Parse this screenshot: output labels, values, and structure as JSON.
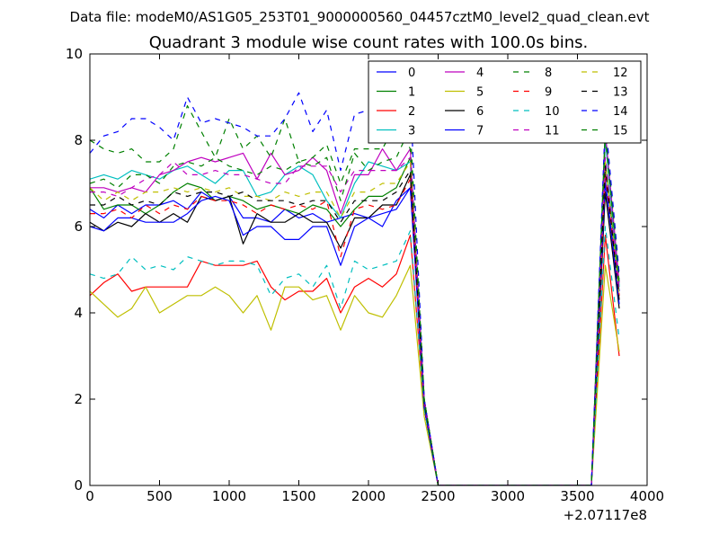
{
  "header": {
    "data_file": "Data file: modeM0/AS1G05_253T01_9000000560_04457cztM0_level2_quad_clean.evt"
  },
  "chart_data": {
    "type": "line",
    "title": "Quadrant 3 module wise count rates with 100.0s bins.",
    "xlabel": "",
    "ylabel": "",
    "x_offset_label": "+2.07117e8",
    "xlim": [
      0,
      4000
    ],
    "ylim": [
      0,
      10
    ],
    "x_ticks": [
      0,
      500,
      1000,
      1500,
      2000,
      2500,
      3000,
      3500,
      4000
    ],
    "y_ticks": [
      0,
      2,
      4,
      6,
      8,
      10
    ],
    "grid": false,
    "legend": {
      "position": "top-right",
      "columns": 4
    },
    "x": [
      0,
      100,
      200,
      300,
      400,
      500,
      600,
      700,
      800,
      900,
      1000,
      1100,
      1200,
      1300,
      1400,
      1500,
      1600,
      1700,
      1800,
      1900,
      2000,
      2100,
      2200,
      2300,
      2400,
      2500,
      2600,
      2700,
      2800,
      2900,
      3000,
      3100,
      3200,
      3300,
      3400,
      3500,
      3600,
      3700,
      3800
    ],
    "series": [
      {
        "name": "0",
        "color": "#0000ff",
        "dash": "solid",
        "values": [
          6.4,
          6.2,
          6.5,
          6.3,
          6.5,
          6.5,
          6.6,
          6.4,
          6.8,
          6.6,
          6.7,
          6.2,
          6.2,
          6.1,
          6.4,
          6.2,
          6.3,
          6.1,
          6.2,
          6.3,
          6.2,
          6.3,
          6.4,
          6.9,
          2.0,
          0,
          0,
          0,
          0,
          0,
          0,
          0,
          0,
          0,
          0,
          0,
          0,
          7.0,
          4.5
        ]
      },
      {
        "name": "1",
        "color": "#008000",
        "dash": "solid",
        "values": [
          6.9,
          6.4,
          6.5,
          6.5,
          6.3,
          6.5,
          6.8,
          7.0,
          6.9,
          6.6,
          6.7,
          6.6,
          6.4,
          6.5,
          6.4,
          6.3,
          6.5,
          6.4,
          6.0,
          6.4,
          6.7,
          6.7,
          6.9,
          7.6,
          2.0,
          0,
          0,
          0,
          0,
          0,
          0,
          0,
          0,
          0,
          0,
          0,
          0,
          7.5,
          4.6
        ]
      },
      {
        "name": "2",
        "color": "#ff0000",
        "dash": "solid",
        "values": [
          4.4,
          4.7,
          4.9,
          4.5,
          4.6,
          4.6,
          4.6,
          4.6,
          5.2,
          5.1,
          5.1,
          5.1,
          5.2,
          4.6,
          4.3,
          4.5,
          4.5,
          4.8,
          4.0,
          4.6,
          4.8,
          4.6,
          4.9,
          5.8,
          1.8,
          0,
          0,
          0,
          0,
          0,
          0,
          0,
          0,
          0,
          0,
          0,
          0,
          5.8,
          3.0
        ]
      },
      {
        "name": "3",
        "color": "#00bfbf",
        "dash": "solid",
        "values": [
          7.1,
          7.2,
          7.1,
          7.3,
          7.2,
          7.1,
          7.3,
          7.4,
          7.2,
          7.0,
          7.3,
          7.3,
          6.7,
          6.8,
          7.2,
          7.4,
          7.2,
          6.6,
          6.2,
          7.0,
          7.5,
          7.4,
          7.3,
          7.5,
          2.0,
          0,
          0,
          0,
          0,
          0,
          0,
          0,
          0,
          0,
          0,
          0,
          0,
          8.0,
          4.6
        ]
      },
      {
        "name": "4",
        "color": "#bf00bf",
        "dash": "solid",
        "values": [
          6.9,
          6.9,
          6.8,
          6.9,
          6.8,
          7.2,
          7.3,
          7.5,
          7.6,
          7.5,
          7.6,
          7.7,
          7.1,
          7.7,
          7.2,
          7.3,
          7.6,
          7.3,
          6.3,
          7.2,
          7.2,
          7.8,
          7.3,
          7.8,
          2.0,
          0,
          0,
          0,
          0,
          0,
          0,
          0,
          0,
          0,
          0,
          0,
          0,
          8.2,
          4.7
        ]
      },
      {
        "name": "5",
        "color": "#bfbf00",
        "dash": "solid",
        "values": [
          4.5,
          4.2,
          3.9,
          4.1,
          4.6,
          4.0,
          4.2,
          4.4,
          4.4,
          4.6,
          4.4,
          4.0,
          4.4,
          3.6,
          4.6,
          4.6,
          4.3,
          4.4,
          3.6,
          4.4,
          4.0,
          3.9,
          4.4,
          5.1,
          1.6,
          0,
          0,
          0,
          0,
          0,
          0,
          0,
          0,
          0,
          0,
          0,
          0,
          5.1,
          3.1
        ]
      },
      {
        "name": "6",
        "color": "#000000",
        "dash": "solid",
        "values": [
          6.1,
          5.9,
          6.1,
          6.0,
          6.3,
          6.1,
          6.3,
          6.1,
          6.7,
          6.6,
          6.7,
          5.6,
          6.3,
          6.1,
          6.1,
          6.3,
          6.1,
          6.1,
          5.5,
          6.2,
          6.2,
          6.5,
          6.5,
          7.2,
          1.8,
          0,
          0,
          0,
          0,
          0,
          0,
          0,
          0,
          0,
          0,
          0,
          0,
          6.8,
          4.1
        ]
      },
      {
        "name": "7",
        "color": "#0000ff",
        "dash": "solid",
        "values": [
          6.0,
          5.9,
          6.2,
          6.2,
          6.1,
          6.1,
          6.1,
          6.3,
          6.6,
          6.7,
          6.6,
          5.8,
          6.0,
          6.0,
          5.7,
          5.7,
          6.0,
          6.0,
          5.1,
          6.0,
          6.2,
          6.0,
          6.6,
          6.9,
          1.8,
          0,
          0,
          0,
          0,
          0,
          0,
          0,
          0,
          0,
          0,
          0,
          0,
          7.1,
          4.2
        ]
      },
      {
        "name": "8",
        "color": "#008000",
        "dash": "dashed",
        "values": [
          8.0,
          7.8,
          7.7,
          7.8,
          7.5,
          7.5,
          7.8,
          8.8,
          8.2,
          7.6,
          8.5,
          7.8,
          8.1,
          7.6,
          8.5,
          7.5,
          7.6,
          7.9,
          7.0,
          7.8,
          7.8,
          7.8,
          8.4,
          7.8,
          2.0,
          0,
          0,
          0,
          0,
          0,
          0,
          0,
          0,
          0,
          0,
          0,
          0,
          8.3,
          4.8
        ]
      },
      {
        "name": "9",
        "color": "#ff0000",
        "dash": "dashed",
        "values": [
          6.3,
          6.3,
          6.4,
          6.2,
          6.5,
          6.3,
          6.5,
          6.4,
          6.7,
          6.6,
          6.6,
          6.5,
          6.3,
          6.5,
          6.4,
          6.5,
          6.4,
          6.6,
          5.3,
          6.4,
          6.5,
          6.4,
          6.5,
          7.1,
          1.9,
          0,
          0,
          0,
          0,
          0,
          0,
          0,
          0,
          0,
          0,
          0,
          0,
          7.2,
          4.4
        ]
      },
      {
        "name": "10",
        "color": "#00bfbf",
        "dash": "dashed",
        "values": [
          4.9,
          4.8,
          4.9,
          5.3,
          5.0,
          5.1,
          5.0,
          5.3,
          5.2,
          5.1,
          5.2,
          5.2,
          5.1,
          4.4,
          4.8,
          4.9,
          4.6,
          5.1,
          4.1,
          5.2,
          5.0,
          5.1,
          5.2,
          5.9,
          1.8,
          0,
          0,
          0,
          0,
          0,
          0,
          0,
          0,
          0,
          0,
          0,
          0,
          6.0,
          3.4
        ]
      },
      {
        "name": "11",
        "color": "#bf00bf",
        "dash": "dashed",
        "values": [
          6.8,
          6.8,
          6.7,
          6.9,
          7.1,
          7.2,
          7.5,
          7.2,
          7.2,
          7.3,
          7.2,
          7.2,
          7.1,
          7.0,
          7.0,
          7.4,
          7.4,
          7.4,
          6.8,
          7.3,
          7.3,
          7.3,
          7.3,
          7.6,
          2.0,
          0,
          0,
          0,
          0,
          0,
          0,
          0,
          0,
          0,
          0,
          0,
          0,
          7.6,
          4.5
        ]
      },
      {
        "name": "12",
        "color": "#bfbf00",
        "dash": "dashed",
        "values": [
          6.9,
          6.6,
          6.8,
          6.6,
          6.8,
          6.8,
          6.9,
          6.8,
          6.9,
          6.8,
          6.9,
          6.7,
          6.7,
          6.6,
          6.8,
          6.7,
          6.8,
          6.8,
          6.2,
          6.8,
          6.8,
          7.0,
          7.0,
          7.5,
          2.0,
          0,
          0,
          0,
          0,
          0,
          0,
          0,
          0,
          0,
          0,
          0,
          0,
          7.5,
          4.4
        ]
      },
      {
        "name": "13",
        "color": "#000000",
        "dash": "dashed",
        "values": [
          6.5,
          6.5,
          6.7,
          6.5,
          6.6,
          6.5,
          6.8,
          6.7,
          6.8,
          6.8,
          6.7,
          6.8,
          6.6,
          6.6,
          6.6,
          6.5,
          6.6,
          6.6,
          6.1,
          6.6,
          6.6,
          6.6,
          6.8,
          7.3,
          1.9,
          0,
          0,
          0,
          0,
          0,
          0,
          0,
          0,
          0,
          0,
          0,
          0,
          7.4,
          4.3
        ]
      },
      {
        "name": "14",
        "color": "#0000ff",
        "dash": "dashed",
        "values": [
          7.7,
          8.1,
          8.2,
          8.5,
          8.5,
          8.3,
          8.0,
          9.0,
          8.4,
          8.5,
          8.4,
          8.3,
          8.1,
          8.1,
          8.5,
          9.1,
          8.2,
          8.7,
          7.3,
          8.6,
          8.7,
          8.8,
          8.6,
          9.0,
          2.0,
          0,
          0,
          0,
          0,
          0,
          0,
          0,
          0,
          0,
          0,
          0,
          0,
          8.5,
          4.9
        ]
      },
      {
        "name": "15",
        "color": "#008000",
        "dash": "dashed",
        "values": [
          7.0,
          7.1,
          6.9,
          7.2,
          7.2,
          7.0,
          7.4,
          7.5,
          7.4,
          7.6,
          7.4,
          7.3,
          7.2,
          7.4,
          7.3,
          7.5,
          7.4,
          7.6,
          6.6,
          7.7,
          7.3,
          7.5,
          7.6,
          8.3,
          2.0,
          0,
          0,
          0,
          0,
          0,
          0,
          0,
          0,
          0,
          0,
          0,
          0,
          8.1,
          4.7
        ]
      }
    ]
  }
}
